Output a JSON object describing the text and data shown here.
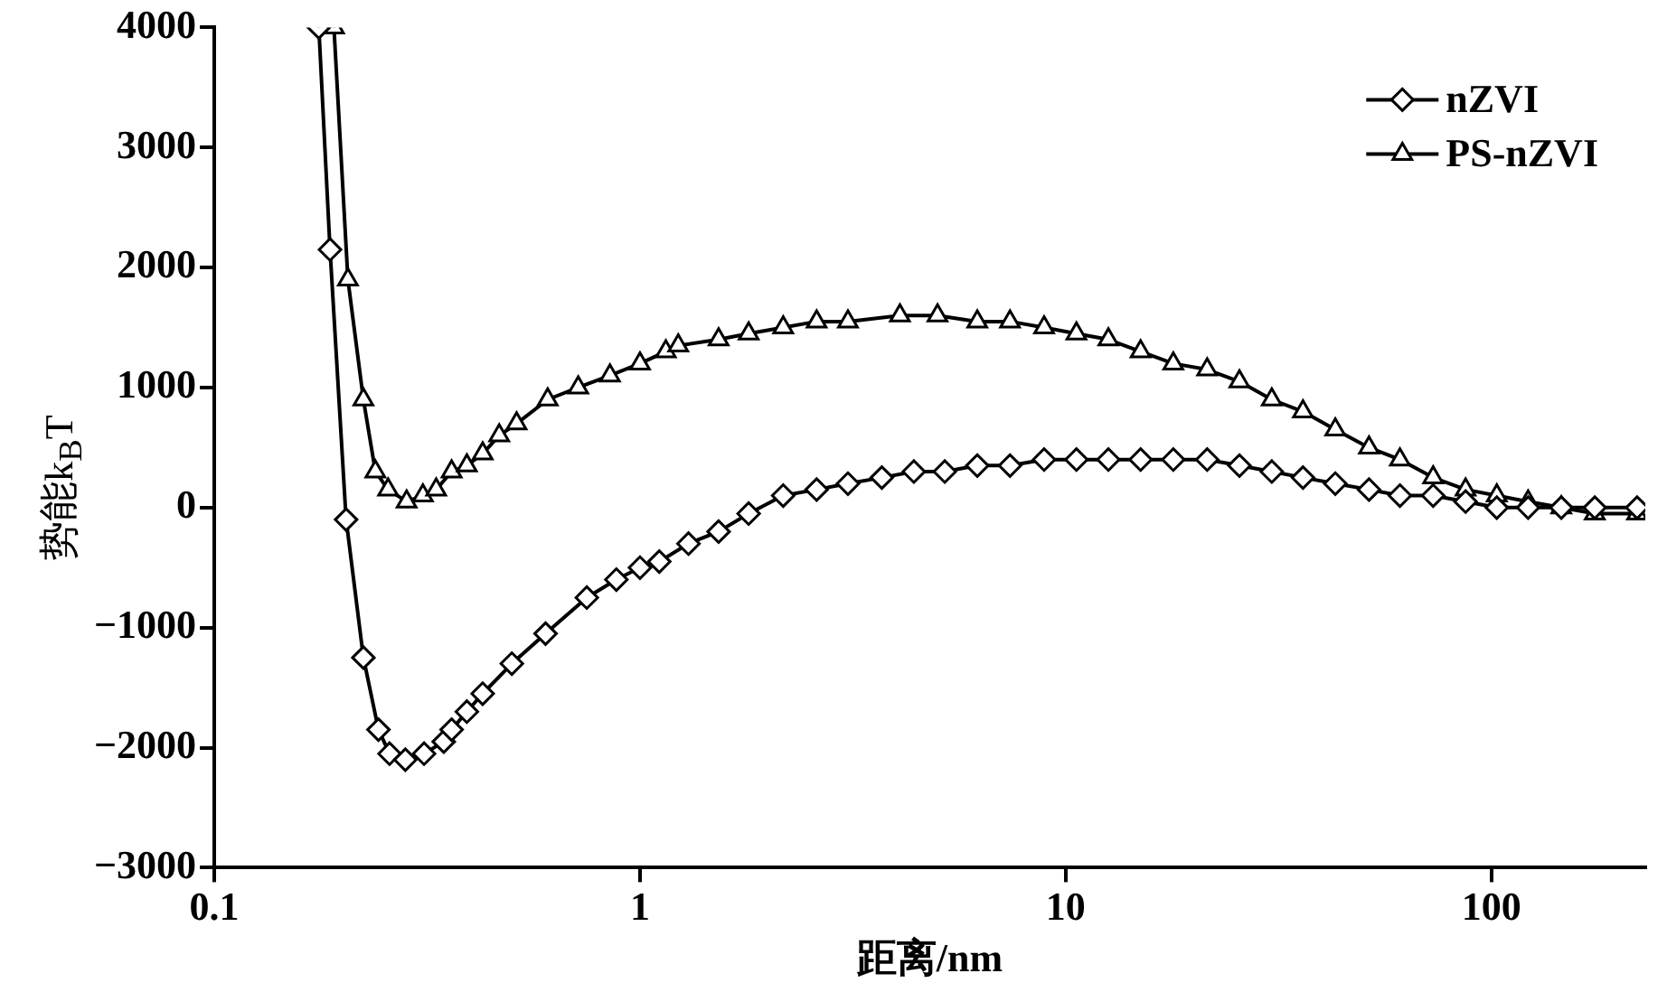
{
  "chart_data": {
    "type": "line",
    "xlabel": "距离/nm",
    "ylabel": "势能k$_{B}$T",
    "log": "x",
    "xlim": [
      0.1,
      230
    ],
    "xticks": [
      0.1,
      1,
      10,
      100
    ],
    "ylim": [
      -3000,
      4000
    ],
    "yticks": [
      -3000,
      -2000,
      -1000,
      0,
      1000,
      2000,
      3000,
      4000
    ],
    "grid": false,
    "legend": "top right",
    "line_style": "solid",
    "series": [
      {
        "name": "nZVI",
        "color": "#000000",
        "marker": "diamond",
        "x": [
          0.176,
          0.187,
          0.204,
          0.224,
          0.243,
          0.258,
          0.281,
          0.311,
          0.346,
          0.361,
          0.392,
          0.427,
          0.5,
          0.6,
          0.75,
          0.88,
          1.0,
          1.11,
          1.3,
          1.53,
          1.8,
          2.17,
          2.6,
          3.08,
          3.7,
          4.4,
          5.2,
          6.2,
          7.4,
          8.9,
          10.6,
          12.6,
          15,
          17.9,
          21.5,
          25.6,
          30.5,
          36.1,
          43,
          51.6,
          61,
          73,
          87,
          103,
          122,
          146,
          175,
          220
        ],
        "values": [
          4000,
          2150,
          -100,
          -1250,
          -1850,
          -2050,
          -2100,
          -2050,
          -1950,
          -1850,
          -1700,
          -1550,
          -1300,
          -1050,
          -750,
          -600,
          -500,
          -450,
          -300,
          -200,
          -50,
          100,
          150,
          200,
          250,
          300,
          300,
          350,
          350,
          400,
          400,
          400,
          400,
          400,
          400,
          350,
          300,
          250,
          200,
          150,
          100,
          100,
          50,
          0,
          0,
          0,
          0,
          0
        ]
      },
      {
        "name": "PS-nZVI",
        "color": "#000000",
        "marker": "triangle",
        "x": [
          0.191,
          0.206,
          0.224,
          0.239,
          0.256,
          0.283,
          0.309,
          0.332,
          0.361,
          0.392,
          0.427,
          0.467,
          0.513,
          0.607,
          0.716,
          0.85,
          1.0,
          1.15,
          1.23,
          1.53,
          1.8,
          2.17,
          2.6,
          3.08,
          4.08,
          5.0,
          6.2,
          7.4,
          8.9,
          10.6,
          12.6,
          15,
          17.9,
          21.5,
          25.6,
          30.5,
          36.1,
          43,
          51.6,
          61,
          73,
          87,
          103,
          122,
          146,
          175,
          220
        ],
        "values": [
          4000,
          1900,
          900,
          300,
          150,
          50,
          100,
          150,
          300,
          350,
          450,
          600,
          700,
          900,
          1000,
          1100,
          1200,
          1300,
          1350,
          1400,
          1450,
          1500,
          1550,
          1550,
          1600,
          1600,
          1550,
          1550,
          1500,
          1450,
          1400,
          1300,
          1200,
          1150,
          1050,
          900,
          800,
          650,
          500,
          400,
          250,
          150,
          100,
          50,
          0,
          -50,
          -50
        ]
      }
    ]
  }
}
